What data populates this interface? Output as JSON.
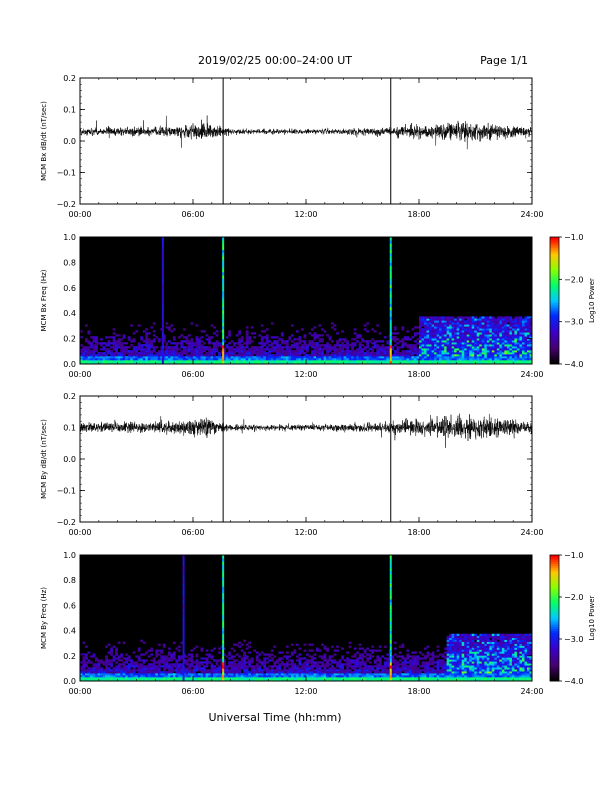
{
  "header": {
    "title": "2019/02/25  00:00–24:00 UT",
    "page": "Page 1/1"
  },
  "footer": {
    "xlabel": "Universal Time (hh:mm)"
  },
  "colors": {
    "trace": "#000000",
    "spectrogram_background": "#000000"
  },
  "chart_data": [
    {
      "type": "line",
      "ylabel": "MCM Bx dB/dt (nT/sec)",
      "xlabel": "",
      "xticks": [
        "00:00",
        "06:00",
        "12:00",
        "18:00",
        "24:00"
      ],
      "x_range_hours": [
        0,
        24
      ],
      "ylim": [
        -0.2,
        0.2
      ],
      "yticks": [
        -0.2,
        -0.1,
        0.0,
        0.1,
        0.2
      ],
      "baseline": 0.03,
      "spikes_hours": [
        7.6,
        16.5
      ],
      "activity_profile": [
        {
          "hour": 0,
          "amplitude": 0.012
        },
        {
          "hour": 5,
          "amplitude": 0.015
        },
        {
          "hour": 6.5,
          "amplitude": 0.03
        },
        {
          "hour": 8,
          "amplitude": 0.008
        },
        {
          "hour": 12,
          "amplitude": 0.007
        },
        {
          "hour": 16,
          "amplitude": 0.012
        },
        {
          "hour": 19,
          "amplitude": 0.025
        },
        {
          "hour": 21,
          "amplitude": 0.028
        },
        {
          "hour": 24,
          "amplitude": 0.015
        }
      ]
    },
    {
      "type": "heatmap",
      "ylabel": "MCM Bx Freq (Hz)",
      "xlabel": "",
      "xticks": [
        "00:00",
        "06:00",
        "12:00",
        "18:00",
        "24:00"
      ],
      "x_range_hours": [
        0,
        24
      ],
      "ylim": [
        0,
        1.0
      ],
      "yticks": [
        0.0,
        0.2,
        0.4,
        0.6,
        0.8,
        1.0
      ],
      "colorbar_label": "Log10 Power",
      "colorbar_ticks": [
        -1.0,
        -2.0,
        -3.0,
        -4.0
      ],
      "colorbar_range": [
        -4.0,
        -1.0
      ],
      "vertical_lines_hours": [
        4.4,
        7.6,
        16.5
      ],
      "active_region_hours": [
        18.0,
        24.0
      ]
    },
    {
      "type": "line",
      "ylabel": "MCM By dB/dt (nT/sec)",
      "xlabel": "",
      "xticks": [
        "00:00",
        "06:00",
        "12:00",
        "18:00",
        "24:00"
      ],
      "x_range_hours": [
        0,
        24
      ],
      "ylim": [
        -0.2,
        0.2
      ],
      "yticks": [
        -0.2,
        -0.1,
        0.0,
        0.1,
        0.2
      ],
      "baseline": 0.1,
      "spikes_hours": [
        7.6,
        16.5
      ],
      "activity_profile": [
        {
          "hour": 0,
          "amplitude": 0.015
        },
        {
          "hour": 5,
          "amplitude": 0.018
        },
        {
          "hour": 6.5,
          "amplitude": 0.035
        },
        {
          "hour": 8,
          "amplitude": 0.01
        },
        {
          "hour": 12,
          "amplitude": 0.009
        },
        {
          "hour": 16,
          "amplitude": 0.015
        },
        {
          "hour": 19,
          "amplitude": 0.03
        },
        {
          "hour": 21,
          "amplitude": 0.04
        },
        {
          "hour": 24,
          "amplitude": 0.02
        }
      ]
    },
    {
      "type": "heatmap",
      "ylabel": "MCM By Freq (Hz)",
      "xlabel": "",
      "xticks": [
        "00:00",
        "06:00",
        "12:00",
        "18:00",
        "24:00"
      ],
      "x_range_hours": [
        0,
        24
      ],
      "ylim": [
        0,
        1.0
      ],
      "yticks": [
        0.0,
        0.2,
        0.4,
        0.6,
        0.8,
        1.0
      ],
      "colorbar_label": "Log10 Power",
      "colorbar_ticks": [
        -1.0,
        -2.0,
        -3.0,
        -4.0
      ],
      "colorbar_range": [
        -4.0,
        -1.0
      ],
      "vertical_lines_hours": [
        5.5,
        7.6,
        16.5
      ],
      "active_region_hours": [
        19.5,
        24.0
      ]
    }
  ]
}
